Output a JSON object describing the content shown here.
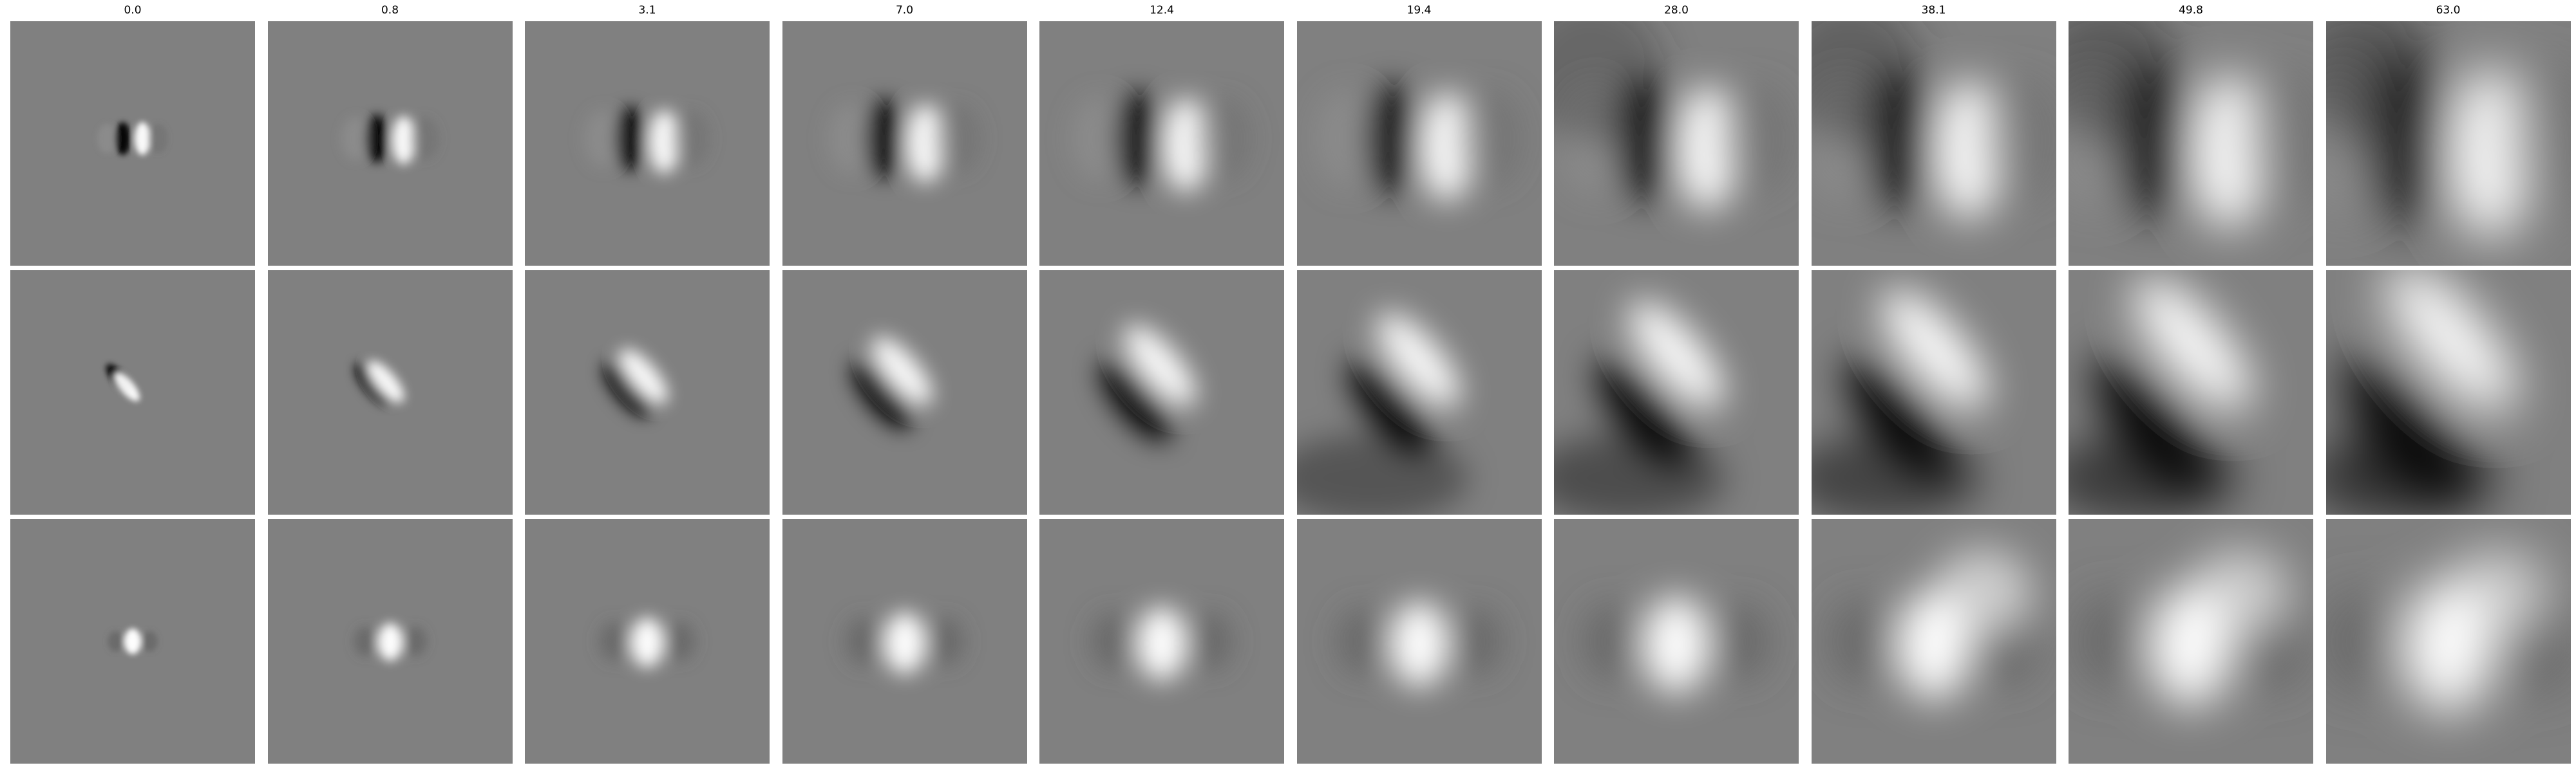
{
  "figure": {
    "column_titles": [
      "0.0",
      "0.8",
      "3.1",
      "7.0",
      "12.4",
      "19.4",
      "28.0",
      "38.1",
      "49.8",
      "63.0"
    ],
    "rows": [
      {
        "row": 1,
        "pattern": "vertical-dark-left-bright-right-receptive-field"
      },
      {
        "row": 2,
        "pattern": "diagonal-dark-upper-left-bright-lower-right-receptive-field"
      },
      {
        "row": 3,
        "pattern": "bright-center-blob-receptive-field"
      }
    ],
    "colormap": "grayscale",
    "background_gray": "#808080"
  }
}
